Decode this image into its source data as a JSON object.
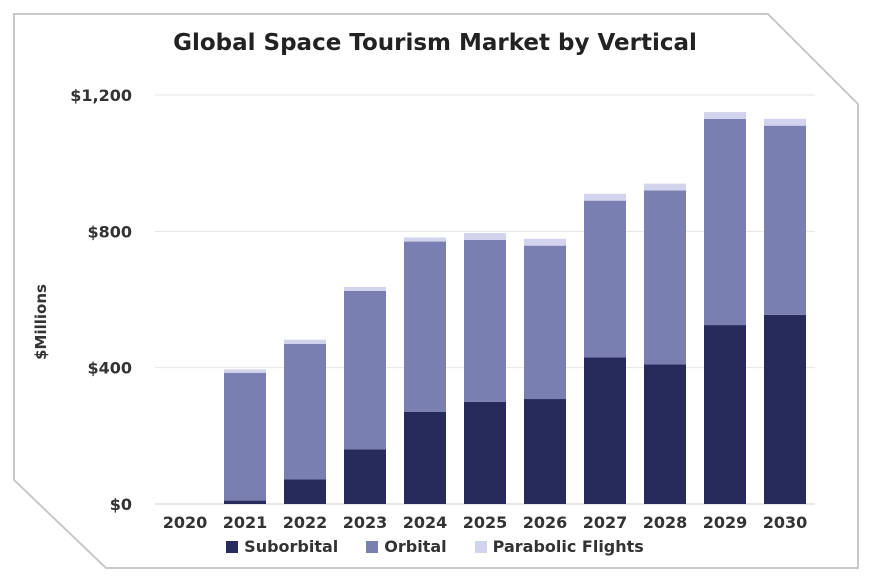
{
  "chart_data": {
    "type": "bar",
    "stacked": true,
    "title": "Global Space Tourism Market by Vertical",
    "ylabel": "$Millions",
    "xlabel": "",
    "ylim": [
      0,
      1200
    ],
    "yticks": [
      0,
      400,
      800,
      1200
    ],
    "ytick_labels": [
      "$0",
      "$400",
      "$800",
      "$1,200"
    ],
    "categories": [
      "2020",
      "2021",
      "2022",
      "2023",
      "2024",
      "2025",
      "2026",
      "2027",
      "2028",
      "2029",
      "2030"
    ],
    "series": [
      {
        "name": "Suborbital",
        "color": "#272b5c",
        "values": [
          0,
          10,
          72,
          160,
          270,
          300,
          308,
          430,
          410,
          525,
          555
        ]
      },
      {
        "name": "Orbital",
        "color": "#7a7fb2",
        "values": [
          0,
          375,
          398,
          465,
          500,
          475,
          450,
          460,
          510,
          605,
          555
        ]
      },
      {
        "name": "Parabolic Flights",
        "color": "#d2d4ee",
        "values": [
          0,
          10,
          12,
          12,
          12,
          20,
          20,
          20,
          20,
          20,
          20
        ]
      }
    ],
    "grid": true,
    "legend_position": "bottom"
  }
}
